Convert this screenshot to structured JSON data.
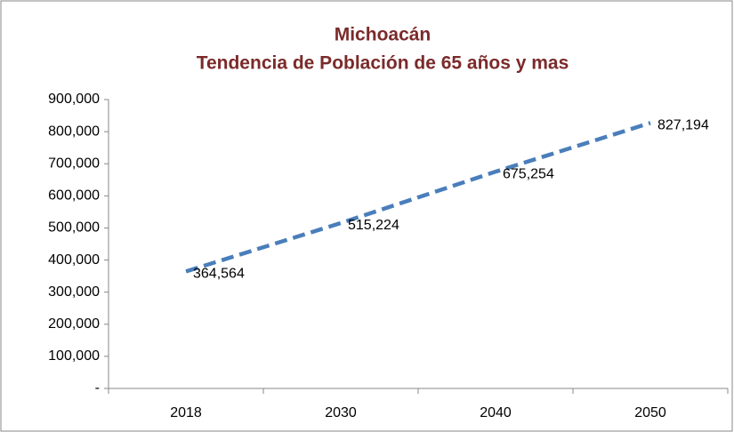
{
  "chart_data": {
    "type": "line",
    "title": "Michoacán",
    "subtitle": "Tendencia de Población de 65 años y mas",
    "categories": [
      "2018",
      "2030",
      "2040",
      "2050"
    ],
    "series": [
      {
        "name": "Población de 65 años y mas",
        "color": "#4a7ebb",
        "values": [
          364564,
          515224,
          675254,
          827194
        ],
        "value_labels": [
          "364,564",
          "515,224",
          "675,254",
          "827,194"
        ]
      }
    ],
    "ylim": [
      0,
      900000
    ],
    "yticks": [
      {
        "value": 0,
        "label": "-"
      },
      {
        "value": 100000,
        "label": "100,000"
      },
      {
        "value": 200000,
        "label": "200,000"
      },
      {
        "value": 300000,
        "label": "300,000"
      },
      {
        "value": 400000,
        "label": "400,000"
      },
      {
        "value": 500000,
        "label": "500,000"
      },
      {
        "value": 600000,
        "label": "600,000"
      },
      {
        "value": 700000,
        "label": "700,000"
      },
      {
        "value": 800000,
        "label": "800,000"
      },
      {
        "value": 900000,
        "label": "900,000"
      }
    ],
    "grid": false,
    "line_style": "dashed"
  }
}
